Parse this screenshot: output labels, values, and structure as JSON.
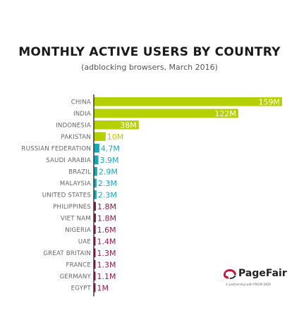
{
  "title": "MONTHLY ACTIVE USERS BY COUNTRY",
  "subtitle": "(adblocking browsers, March 2016)",
  "logo": {
    "name": "PageFair",
    "partner": "in partnership with PRIORI DATA"
  },
  "colors": {
    "green": "#b5cf00",
    "teal": "#1aa6b7",
    "maroon": "#8e1b4e",
    "axis": "#222222",
    "label": "#666666"
  },
  "chart_data": {
    "type": "bar",
    "orientation": "horizontal",
    "title": "MONTHLY ACTIVE USERS BY COUNTRY",
    "subtitle": "(adblocking browsers, March 2016)",
    "categories": [
      "CHINA",
      "INDIA",
      "INDONESIA",
      "PAKISTAN",
      "RUSSIAN FEDERATION",
      "SAUDI ARABIA",
      "BRAZIL",
      "MALAYSIA",
      "UNITED STATES",
      "PHILIPPINES",
      "VIET NAM",
      "NIGERIA",
      "UAE",
      "GREAT BRITAIN",
      "FRANCE",
      "GERMANY",
      "EGYPT"
    ],
    "values": [
      159,
      122,
      38,
      10,
      4.7,
      3.9,
      2.9,
      2.3,
      2.3,
      1.8,
      1.8,
      1.6,
      1.4,
      1.3,
      1.3,
      1.1,
      1
    ],
    "labels": [
      "159M",
      "122M",
      "38M",
      "10M",
      "4.7M",
      "3.9M",
      "2.9M",
      "2.3M",
      "2.3M",
      "1.8M",
      "1.8M",
      "1.6M",
      "1.4M",
      "1.3M",
      "1.3M",
      "1.1M",
      "1M"
    ],
    "groups": [
      "green",
      "green",
      "green",
      "green",
      "teal",
      "teal",
      "teal",
      "teal",
      "teal",
      "maroon",
      "maroon",
      "maroon",
      "maroon",
      "maroon",
      "maroon",
      "maroon",
      "maroon"
    ],
    "unit": "M",
    "xlim": [
      0,
      159
    ],
    "grid": false,
    "legend": "none"
  }
}
